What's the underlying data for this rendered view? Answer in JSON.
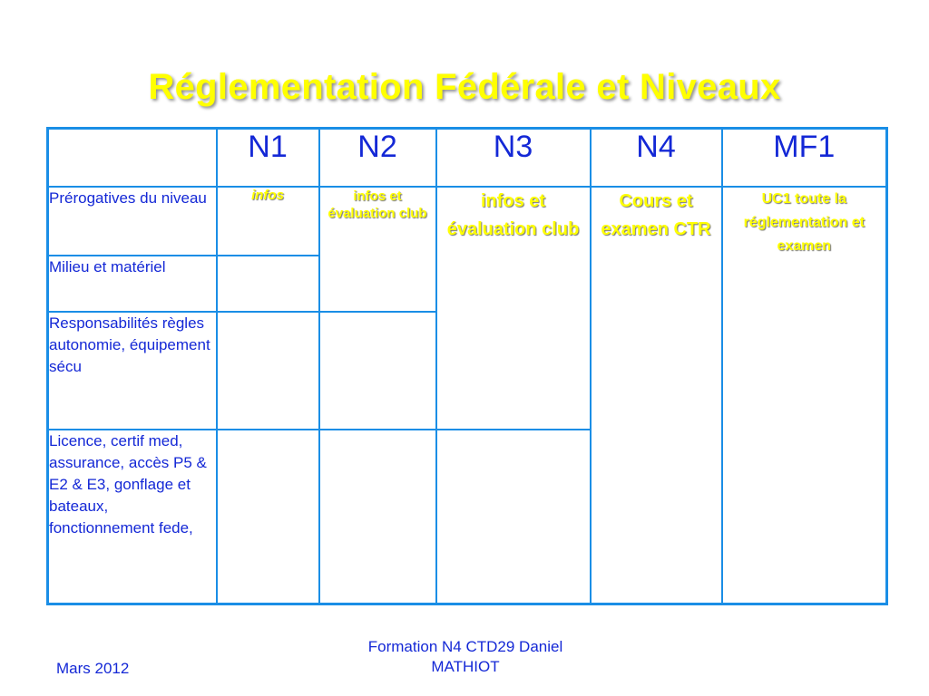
{
  "slide": {
    "title": "Réglementation Fédérale et Niveaux"
  },
  "table": {
    "header": [
      "",
      "N1",
      "N2",
      "N3",
      "N4",
      "MF1"
    ],
    "row_labels": [
      "Prérogatives du niveau",
      "Milieu et matériel",
      "Responsabilités règles autonomie, équipement sécu",
      "Licence, certif med, assurance, accès P5 & E2 & E3, gonflage et bateaux, fonctionnement fede,"
    ],
    "cells": {
      "n1_prerogatives": "infos",
      "n2_merged": "infos et évaluation club",
      "n3_merged": "infos et évaluation club",
      "n4_merged": "Cours et examen CTR",
      "mf1_merged": "UC1 toute la réglementation et examen"
    }
  },
  "footer": {
    "date": "Mars 2012",
    "author": "Formation N4 CTD29 Daniel MATHIOT"
  },
  "colors": {
    "title": "#ffff00",
    "border": "#1a8ee6",
    "text": "#1428d6",
    "highlight_text": "#ffff00"
  }
}
